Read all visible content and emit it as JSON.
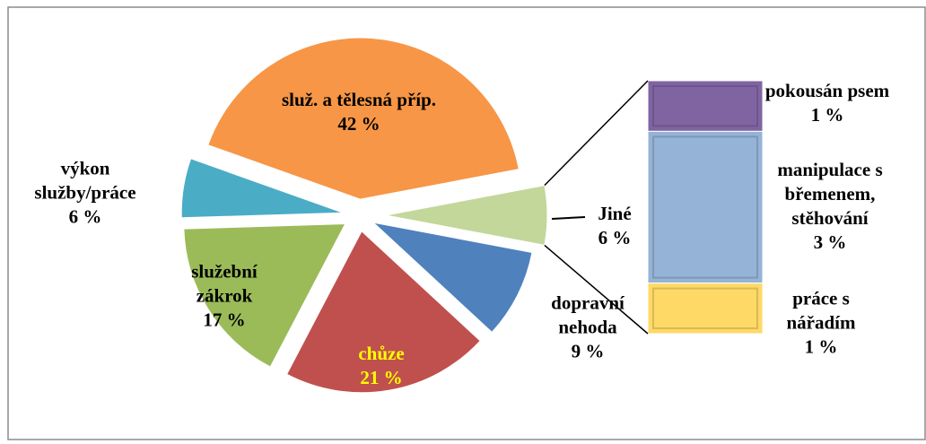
{
  "chart_data": {
    "type": "pie-of-bar",
    "categories": [
      "Jiné",
      "dopravní nehoda",
      "chůze",
      "služební zákrok",
      "výkon služby/práce",
      "služ. a tělesná příp."
    ],
    "values": [
      6,
      9,
      21,
      17,
      6,
      42
    ],
    "value_labels": [
      "6 %",
      "9 %",
      "21 %",
      "17 %",
      "6 %",
      "42 %"
    ],
    "colors": [
      "#c4d79b",
      "#4f81bd",
      "#c0504d",
      "#9bbb59",
      "#4bacc6",
      "#f79646"
    ],
    "label_colors": [
      "#000000",
      "#000000",
      "#ffff00",
      "#000000",
      "#000000",
      "#000000"
    ],
    "bar": {
      "categories": [
        "pokousán psem",
        "manipulace s břemenem, stěhování",
        "práce s nářadím"
      ],
      "values": [
        1,
        3,
        1
      ],
      "value_labels": [
        "1 %",
        "3 %",
        "1 %"
      ],
      "colors": [
        "#8064a2",
        "#95b3d7",
        "#ffd966"
      ]
    }
  }
}
